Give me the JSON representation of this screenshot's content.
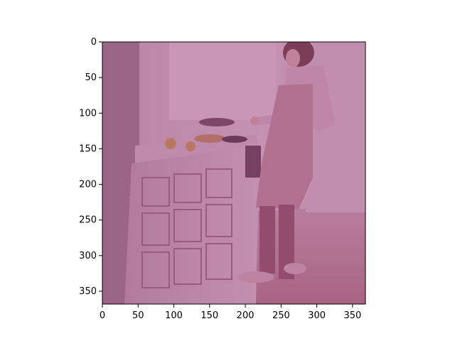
{
  "figure": {
    "background": "#ffffff",
    "image_extent": {
      "x": [
        0,
        368
      ],
      "y": [
        368,
        0
      ]
    },
    "scene": {
      "description_tags": [
        "kitchen",
        "person-cooking",
        "stove",
        "counter",
        "cabinets"
      ],
      "overlay_tint": "#9b3f79",
      "tint_opacity": 0.52
    },
    "axes": {
      "x_ticks": [
        0,
        50,
        100,
        150,
        200,
        250,
        300,
        350
      ],
      "y_ticks": [
        0,
        50,
        100,
        150,
        200,
        250,
        300,
        350
      ],
      "x_tick_labels": [
        "0",
        "50",
        "100",
        "150",
        "200",
        "250",
        "300",
        "350"
      ],
      "y_tick_labels": [
        "0",
        "50",
        "100",
        "150",
        "200",
        "250",
        "300",
        "350"
      ],
      "spine_color": "#000000",
      "tick_color": "#000000"
    }
  }
}
